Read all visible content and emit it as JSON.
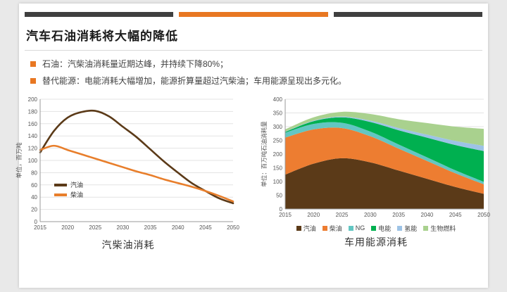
{
  "header": {
    "bars": [
      {
        "color": "#3f3f3f"
      },
      {
        "color": "#e87722"
      },
      {
        "color": "#3f3f3f"
      }
    ],
    "title": "汽车石油消耗将大幅的降低"
  },
  "bullets": [
    {
      "marker_color": "#e87722",
      "text": "石油：汽柴油消耗量近期达峰，并持续下降80%；"
    },
    {
      "marker_color": "#e87722",
      "text": "替代能源：电能消耗大幅增加，能源折算量超过汽柴油；车用能源呈现出多元化。"
    }
  ],
  "chart_data": [
    {
      "type": "line",
      "title": "汽柴油消耗",
      "ylabel": "单位，百万吨",
      "ylim": [
        0,
        200
      ],
      "yticks": [
        0,
        20,
        40,
        60,
        80,
        100,
        120,
        140,
        160,
        180,
        200
      ],
      "xticks": [
        2015,
        2020,
        2025,
        2030,
        2035,
        2040,
        2045,
        2050
      ],
      "xlim": [
        2015,
        2050
      ],
      "grid": true,
      "legend_position": "inside-bottom-left",
      "x": [
        2015,
        2017.5,
        2020,
        2022.5,
        2025,
        2027.5,
        2030,
        2032.5,
        2035,
        2037.5,
        2040,
        2042.5,
        2045,
        2047.5,
        2050
      ],
      "series": [
        {
          "name": "汽油",
          "color": "#5b3a18",
          "values": [
            113,
            148,
            170,
            179,
            181,
            172,
            155,
            138,
            118,
            98,
            80,
            63,
            50,
            38,
            30
          ]
        },
        {
          "name": "柴油",
          "color": "#e87e2b",
          "values": [
            117,
            124,
            117,
            110,
            103,
            96,
            89,
            82,
            76,
            69,
            63,
            57,
            50,
            42,
            33
          ]
        }
      ]
    },
    {
      "type": "area",
      "title": "车用能源消耗",
      "ylabel": "单位：百万吨石油消耗量",
      "ylim": [
        0,
        400
      ],
      "yticks": [
        0,
        50,
        100,
        150,
        200,
        250,
        300,
        350,
        400
      ],
      "xticks": [
        2015,
        2020,
        2025,
        2030,
        2035,
        2040,
        2045,
        2050
      ],
      "xlim": [
        2015,
        2050
      ],
      "grid": true,
      "legend_position": "bottom",
      "x": [
        2015,
        2020,
        2025,
        2030,
        2035,
        2040,
        2045,
        2050
      ],
      "series": [
        {
          "name": "汽油",
          "color": "#5b3a18",
          "values": [
            125,
            165,
            185,
            170,
            140,
            110,
            80,
            55
          ]
        },
        {
          "name": "柴油",
          "color": "#ed7d31",
          "values": [
            135,
            125,
            110,
            95,
            80,
            65,
            50,
            35
          ]
        },
        {
          "name": "NG",
          "color": "#62c6c2",
          "values": [
            18,
            20,
            19,
            17,
            15,
            13,
            11,
            9
          ]
        },
        {
          "name": "电能",
          "color": "#00b050",
          "values": [
            3,
            10,
            20,
            35,
            52,
            72,
            92,
            112
          ]
        },
        {
          "name": "氢能",
          "color": "#9dc3e6",
          "values": [
            1,
            2,
            3,
            5,
            8,
            11,
            15,
            19
          ]
        },
        {
          "name": "生物燃料",
          "color": "#a9d18e",
          "values": [
            8,
            12,
            17,
            24,
            32,
            42,
            52,
            62
          ]
        }
      ]
    }
  ]
}
